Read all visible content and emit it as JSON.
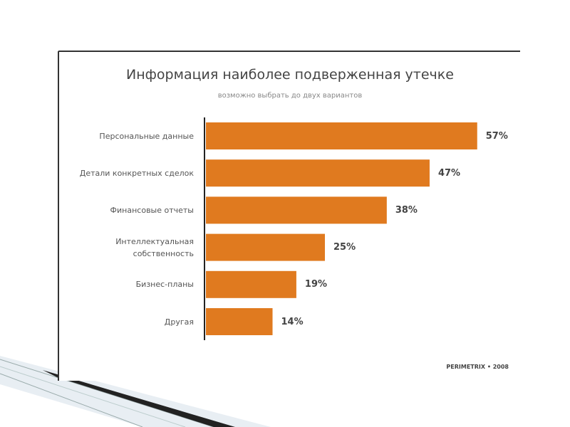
{
  "chart_data": {
    "type": "bar",
    "orientation": "horizontal",
    "title": "Информация наиболее подверженная утечке",
    "subtitle": "возможно выбрать до двух вариантов",
    "categories": [
      "Персональные данные",
      "Детали конкретных сделок",
      "Финансовые отчеты",
      "Интеллектуальная\nсобственность",
      "Бизнес-планы",
      "Другая"
    ],
    "values": [
      57,
      47,
      38,
      25,
      19,
      14
    ],
    "value_labels": [
      "57%",
      "47%",
      "38%",
      "25%",
      "19%",
      "14%"
    ],
    "color": "#e07a1f",
    "source": "PERIMETRIX • 2008"
  }
}
